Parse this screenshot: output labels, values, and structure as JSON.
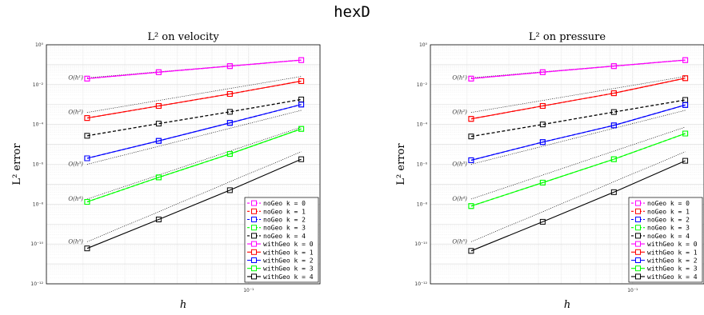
{
  "suptitle": "hexD",
  "chart_data": [
    {
      "type": "line",
      "title": "L² on velocity",
      "xlabel": "h",
      "ylabel": "L² error",
      "xscale": "log",
      "yscale": "log",
      "xlim": [
        0.014,
        0.2
      ],
      "ylim": [
        1e-12,
        1
      ],
      "grid": true,
      "legend_position": "bottom-right",
      "x": [
        0.0208,
        0.0417,
        0.0833,
        0.1667
      ],
      "series": [
        {
          "name": "noGeo k = 0",
          "style": "dashed",
          "color": "#ff00ff",
          "values": [
            0.02,
            0.042,
            0.085,
            0.17
          ]
        },
        {
          "name": "noGeo k = 1",
          "style": "dashed",
          "color": "#ff0000",
          "values": [
            0.00021,
            0.00085,
            0.0034,
            0.015
          ]
        },
        {
          "name": "noGeo k = 2",
          "style": "dashed",
          "color": "#0000ff",
          "values": [
            2e-06,
            1.5e-05,
            0.00012,
            0.001
          ]
        },
        {
          "name": "noGeo k = 3",
          "style": "dashed",
          "color": "#00ff00",
          "values": [
            1.3e-08,
            2.2e-07,
            3.3e-06,
            6e-05
          ]
        },
        {
          "name": "noGeo k = 4",
          "style": "dashed",
          "color": "#000000",
          "values": [
            2.7e-05,
            0.00011,
            0.00043,
            0.0018
          ]
        },
        {
          "name": "withGeo k = 0",
          "style": "solid",
          "color": "#ff00ff",
          "values": [
            0.02,
            0.042,
            0.085,
            0.17
          ]
        },
        {
          "name": "withGeo k = 1",
          "style": "solid",
          "color": "#ff0000",
          "values": [
            0.00021,
            0.00085,
            0.0034,
            0.015
          ]
        },
        {
          "name": "withGeo k = 2",
          "style": "solid",
          "color": "#0000ff",
          "values": [
            2e-06,
            1.5e-05,
            0.00012,
            0.001
          ]
        },
        {
          "name": "withGeo k = 3",
          "style": "solid",
          "color": "#00ff00",
          "values": [
            1.3e-08,
            2.2e-07,
            3.3e-06,
            6e-05
          ]
        },
        {
          "name": "withGeo k = 4",
          "style": "solid",
          "color": "#000000",
          "values": [
            6e-11,
            1.7e-09,
            5e-08,
            1.8e-06
          ]
        }
      ],
      "reference_lines": [
        {
          "label": "O(h¹)",
          "values": [
            0.022,
            0.044,
            0.088,
            0.176
          ]
        },
        {
          "label": "O(h²)",
          "values": [
            0.0004,
            0.0016,
            0.0064,
            0.0256
          ]
        },
        {
          "label": "O(h³)",
          "values": [
            1e-06,
            8e-06,
            6.4e-05,
            0.000512
          ]
        },
        {
          "label": "O(h⁴)",
          "values": [
            1.8e-08,
            2.88e-07,
            4.6e-06,
            7.37e-05
          ]
        },
        {
          "label": "O(h⁵)",
          "values": [
            1.3e-10,
            4.16e-09,
            1.33e-07,
            4.26e-06
          ]
        }
      ]
    },
    {
      "type": "line",
      "title": "L² on pressure",
      "xlabel": "h",
      "ylabel": "L² error",
      "xscale": "log",
      "yscale": "log",
      "xlim": [
        0.014,
        0.2
      ],
      "ylim": [
        1e-12,
        1
      ],
      "grid": true,
      "legend_position": "bottom-right",
      "x": [
        0.0208,
        0.0417,
        0.0833,
        0.1667
      ],
      "series": [
        {
          "name": "noGeo k = 0",
          "style": "dashed",
          "color": "#ff00ff",
          "values": [
            0.02,
            0.042,
            0.085,
            0.17
          ]
        },
        {
          "name": "noGeo k = 1",
          "style": "dashed",
          "color": "#ff0000",
          "values": [
            0.00019,
            0.00085,
            0.0037,
            0.021
          ]
        },
        {
          "name": "noGeo k = 2",
          "style": "dashed",
          "color": "#0000ff",
          "values": [
            1.6e-06,
            1.3e-05,
            9e-05,
            0.00095
          ]
        },
        {
          "name": "noGeo k = 3",
          "style": "dashed",
          "color": "#00ff00",
          "values": [
            8e-09,
            1.2e-07,
            1.8e-06,
            3.5e-05
          ]
        },
        {
          "name": "noGeo k = 4",
          "style": "dashed",
          "color": "#000000",
          "values": [
            2.5e-05,
            0.0001,
            0.00042,
            0.0017
          ]
        },
        {
          "name": "withGeo k = 0",
          "style": "solid",
          "color": "#ff00ff",
          "values": [
            0.02,
            0.042,
            0.085,
            0.17
          ]
        },
        {
          "name": "withGeo k = 1",
          "style": "solid",
          "color": "#ff0000",
          "values": [
            0.00019,
            0.00085,
            0.0037,
            0.021
          ]
        },
        {
          "name": "withGeo k = 2",
          "style": "solid",
          "color": "#0000ff",
          "values": [
            1.6e-06,
            1.3e-05,
            9e-05,
            0.00095
          ]
        },
        {
          "name": "withGeo k = 3",
          "style": "solid",
          "color": "#00ff00",
          "values": [
            8e-09,
            1.2e-07,
            1.8e-06,
            3.5e-05
          ]
        },
        {
          "name": "withGeo k = 4",
          "style": "solid",
          "color": "#000000",
          "values": [
            4.5e-11,
            1.3e-09,
            4e-08,
            1.5e-06
          ]
        }
      ],
      "reference_lines": [
        {
          "label": "O(h¹)",
          "values": [
            0.022,
            0.044,
            0.088,
            0.176
          ]
        },
        {
          "label": "O(h²)",
          "values": [
            0.0004,
            0.0016,
            0.0064,
            0.0256
          ]
        },
        {
          "label": "O(h³)",
          "values": [
            1e-06,
            8e-06,
            6.4e-05,
            0.000512
          ]
        },
        {
          "label": "O(h⁴)",
          "values": [
            1.8e-08,
            2.88e-07,
            4.6e-06,
            7.37e-05
          ]
        },
        {
          "label": "O(h⁵)",
          "values": [
            1.3e-10,
            4.16e-09,
            1.33e-07,
            4.26e-06
          ]
        }
      ]
    }
  ]
}
